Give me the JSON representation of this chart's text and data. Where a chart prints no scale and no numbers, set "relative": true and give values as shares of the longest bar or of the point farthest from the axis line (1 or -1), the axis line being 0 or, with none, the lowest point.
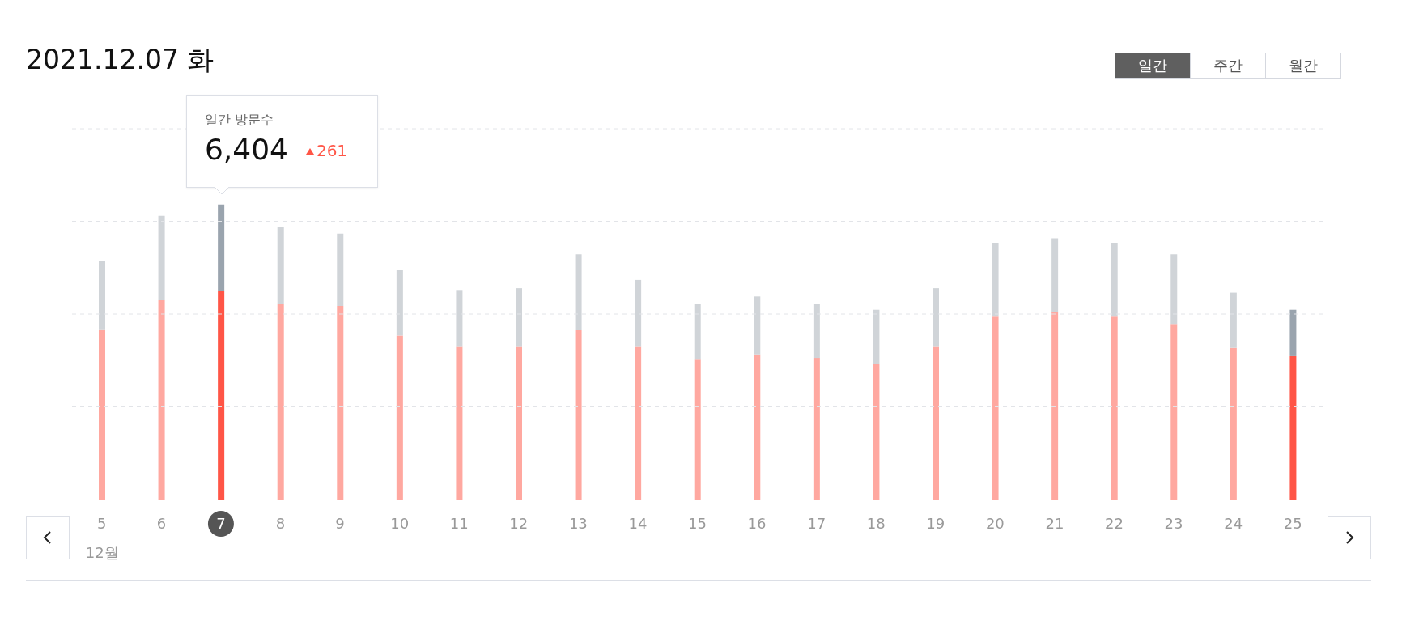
{
  "chart_data": {
    "type": "bar",
    "title": "2021.12.07 화",
    "categories": [
      "5",
      "6",
      "7",
      "8",
      "9",
      "10",
      "11",
      "12",
      "13",
      "14",
      "15",
      "16",
      "17",
      "18",
      "19",
      "20",
      "21",
      "22",
      "23",
      "24",
      "25"
    ],
    "stacked": true,
    "relative": true,
    "series": [
      {
        "colors": [
          "#ffa8a0",
          "#ffa8a0",
          "#ff5546",
          "#ffa8a0",
          "#ffa8a0",
          "#ffa8a0",
          "#ffa8a0",
          "#ffa8a0",
          "#ffa8a0",
          "#ffa8a0",
          "#ffa8a0",
          "#ffa8a0",
          "#ffa8a0",
          "#ffa8a0",
          "#ffa8a0",
          "#ffa8a0",
          "#ffa8a0",
          "#ffa8a0",
          "#ffa8a0",
          "#ffa8a0",
          "#ff5546"
        ],
        "values": [
          0.577,
          0.677,
          0.707,
          0.662,
          0.656,
          0.556,
          0.52,
          0.52,
          0.574,
          0.52,
          0.474,
          0.492,
          0.48,
          0.459,
          0.52,
          0.622,
          0.634,
          0.622,
          0.595,
          0.514,
          0.486
        ]
      },
      {
        "colors": [
          "#d0d4d8",
          "#d0d4d8",
          "#9aa4ae",
          "#d0d4d8",
          "#d0d4d8",
          "#d0d4d8",
          "#d0d4d8",
          "#d0d4d8",
          "#d0d4d8",
          "#d0d4d8",
          "#d0d4d8",
          "#d0d4d8",
          "#d0d4d8",
          "#d0d4d8",
          "#d0d4d8",
          "#d0d4d8",
          "#d0d4d8",
          "#d0d4d8",
          "#d0d4d8",
          "#d0d4d8",
          "#9aa4ae"
        ],
        "values": [
          0.23,
          0.284,
          0.293,
          0.26,
          0.245,
          0.221,
          0.19,
          0.196,
          0.257,
          0.224,
          0.19,
          0.196,
          0.184,
          0.184,
          0.196,
          0.248,
          0.251,
          0.248,
          0.236,
          0.187,
          0.157
        ]
      }
    ],
    "annotations": [
      "일간 방문수",
      "6,404",
      "261",
      "12월",
      "일간",
      "주간",
      "월간"
    ]
  }
}
